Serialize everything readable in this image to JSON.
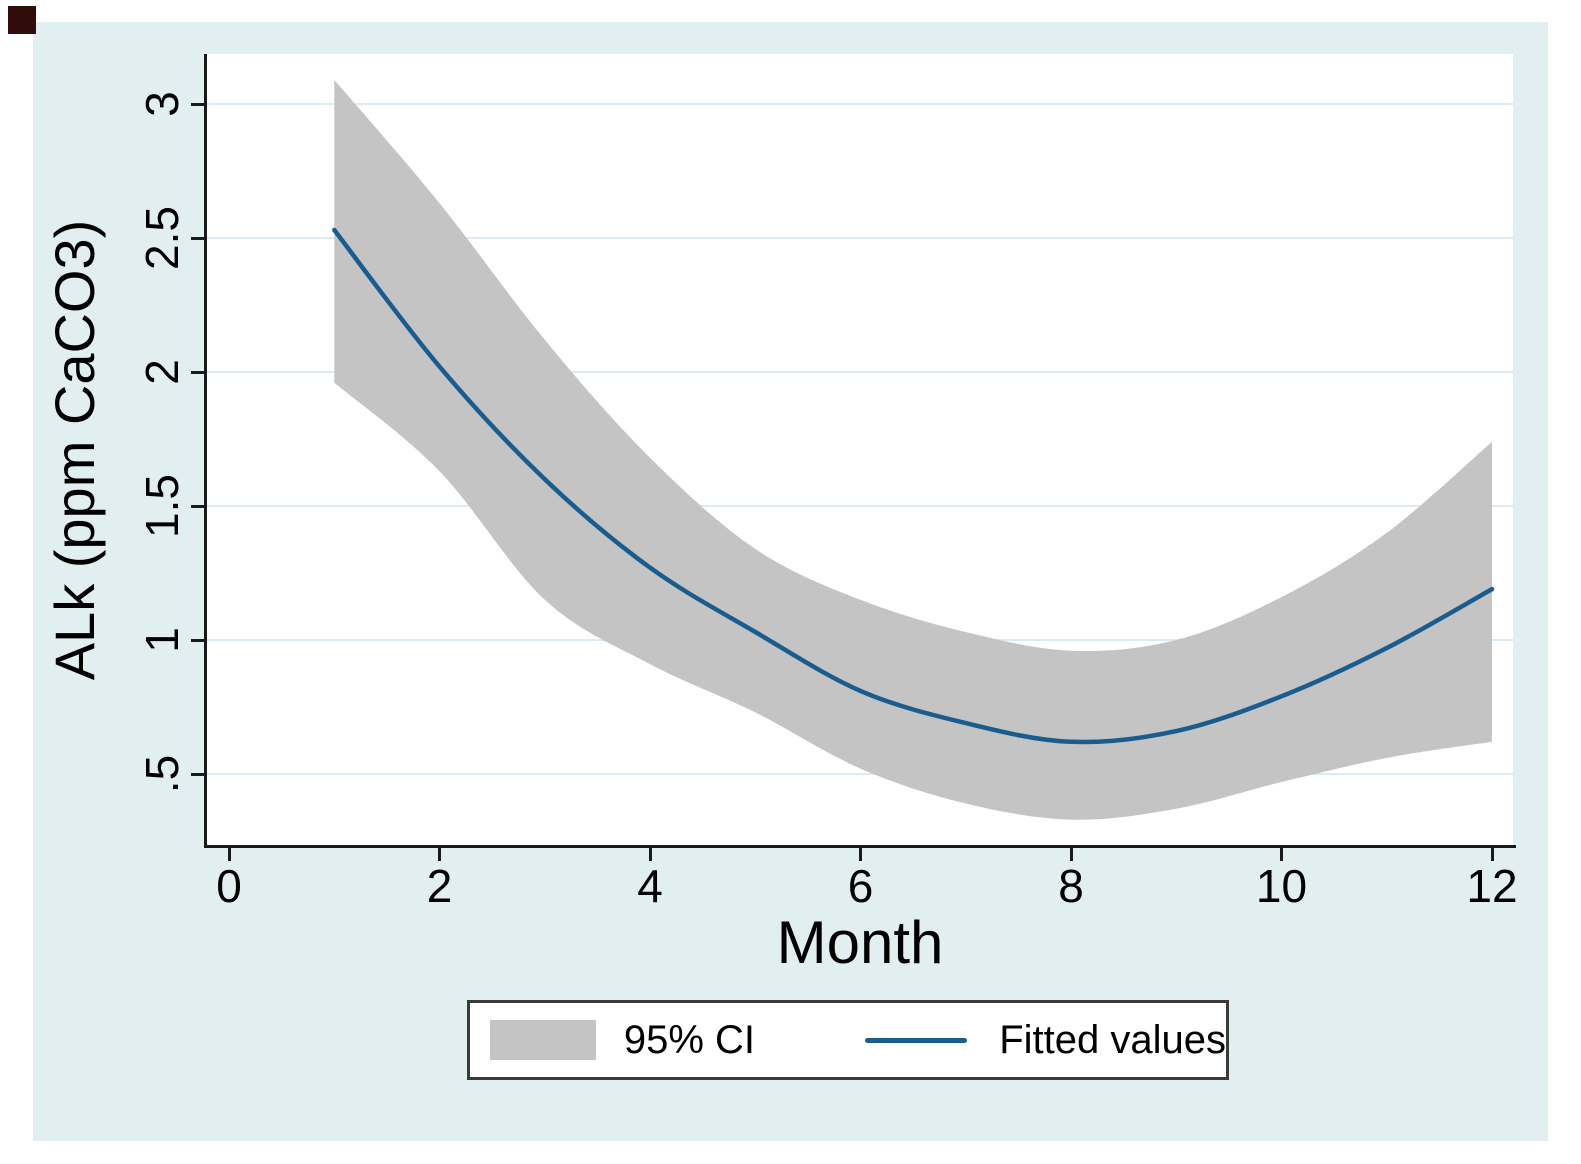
{
  "figure": {
    "page_background": "#ffffff",
    "panel_background": "#e1eff1",
    "plot_background": "#ffffff",
    "grid_color": "#dcebf3",
    "axis_color": "#1a1a1a",
    "corner_mark_color": "#300d0b"
  },
  "axes": {
    "x_title": "Month",
    "y_title": "ALk (ppm CaCO3)"
  },
  "legend": {
    "ci_label": "95% CI",
    "fit_label": "Fitted values"
  },
  "chart_data": {
    "type": "line",
    "title": "",
    "xlabel": "Month",
    "ylabel": "ALk (ppm CaCO3)",
    "x": [
      1,
      2,
      3,
      4,
      5,
      6,
      7,
      8,
      9,
      10,
      11,
      12
    ],
    "series": [
      {
        "name": "Fitted values",
        "values": [
          2.53,
          2.02,
          1.6,
          1.27,
          1.03,
          0.81,
          0.69,
          0.62,
          0.66,
          0.79,
          0.97,
          1.19
        ]
      },
      {
        "name": "95% CI upper bound",
        "values": [
          3.09,
          2.63,
          2.12,
          1.68,
          1.34,
          1.15,
          1.03,
          0.96,
          1.0,
          1.16,
          1.4,
          1.74
        ]
      },
      {
        "name": "95% CI lower bound",
        "values": [
          1.96,
          1.63,
          1.15,
          0.91,
          0.73,
          0.52,
          0.39,
          0.33,
          0.37,
          0.47,
          0.56,
          0.62
        ]
      }
    ],
    "xlim": [
      -0.2,
      12.2
    ],
    "ylim": [
      0.23,
      3.19
    ],
    "x_ticks": {
      "values": [
        0,
        2,
        4,
        6,
        8,
        10,
        12
      ],
      "labels": [
        "0",
        "2",
        "4",
        "6",
        "8",
        "10",
        "12"
      ]
    },
    "y_ticks": {
      "values": [
        3,
        2.5,
        2,
        1.5,
        1,
        0.5
      ],
      "labels": [
        "3",
        "2.5",
        "2",
        "1.5",
        "1",
        ".5"
      ]
    },
    "grid": "horizontal",
    "band_color": "#c4c4c4",
    "line_color": "#1b5c8e",
    "legend_position": "bottom",
    "legend_entries": [
      "95% CI",
      "Fitted values"
    ]
  }
}
